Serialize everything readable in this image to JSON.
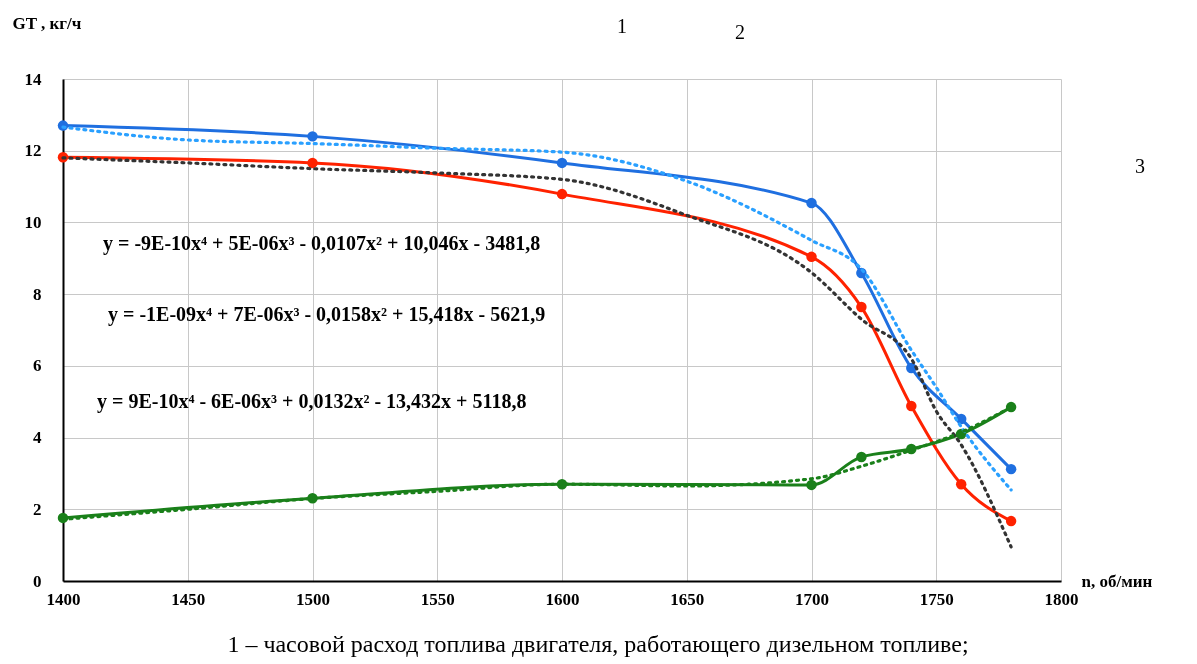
{
  "chart_data": {
    "type": "line",
    "xlabel": "n, об/мин",
    "ylabel": "GT , кг/ч",
    "x": [
      1400,
      1500,
      1600,
      1700,
      1720,
      1740,
      1760,
      1780
    ],
    "series": [
      {
        "color": "#1f6fe0",
        "values": [
          12.7,
          12.4,
          11.66,
          10.54,
          8.59,
          5.94,
          4.52,
          3.12
        ]
      },
      {
        "color": "#ff2200",
        "values": [
          11.82,
          11.66,
          10.79,
          9.04,
          7.64,
          4.88,
          2.7,
          1.67
        ]
      },
      {
        "color": "#1a801a",
        "values": [
          1.76,
          2.31,
          2.7,
          2.68,
          3.46,
          3.68,
          4.1,
          4.85
        ]
      },
      {
        "color": "#2aa0ff",
        "line_style": "dotted",
        "marker": "none",
        "x": [
          1400,
          1450,
          1500,
          1550,
          1600,
          1650,
          1700,
          1720,
          1740,
          1750,
          1760,
          1780
        ],
        "values": [
          12.66,
          12.3,
          12.2,
          12.07,
          11.96,
          11.15,
          9.5,
          8.7,
          6.44,
          5.4,
          4.3,
          2.54
        ]
      },
      {
        "color": "#333333",
        "line_style": "dotted",
        "marker": "none",
        "x": [
          1400,
          1450,
          1500,
          1550,
          1600,
          1650,
          1700,
          1720,
          1740,
          1750,
          1760,
          1780
        ],
        "values": [
          11.8,
          11.66,
          11.5,
          11.38,
          11.2,
          10.2,
          8.6,
          7.3,
          6.2,
          4.74,
          3.8,
          0.95
        ]
      },
      {
        "color": "#1a801a",
        "line_style": "dotted",
        "marker": "none",
        "x": [
          1400,
          1450,
          1500,
          1550,
          1600,
          1650,
          1700,
          1720,
          1740,
          1760,
          1780
        ],
        "values": [
          1.72,
          2.0,
          2.3,
          2.5,
          2.7,
          2.65,
          2.85,
          3.2,
          3.65,
          4.15,
          4.85
        ]
      }
    ],
    "xlim": [
      1400,
      1800
    ],
    "xticks": [
      1400,
      1450,
      1500,
      1550,
      1600,
      1650,
      1700,
      1750,
      1800
    ],
    "ylim": [
      0,
      14
    ],
    "yticks": [
      0,
      2,
      4,
      6,
      8,
      10,
      12,
      14
    ],
    "grid": true,
    "marker": "circle",
    "line_style": "solid",
    "annotations": [
      "1",
      "2",
      "3",
      "y = -9E-10x⁴ + 5E-06x³ - 0,0107x² + 10,046x - 3481,8",
      "y = -1E-09x⁴ + 7E-06x³ - 0,0158x² + 15,418x - 5621,9",
      "y = 9E-10x⁴ - 6E-06x³ + 0,0132x² - 13,432x + 5118,8",
      "1 – часовой расход топлива двигателя, работающего дизельном топливе;"
    ]
  }
}
